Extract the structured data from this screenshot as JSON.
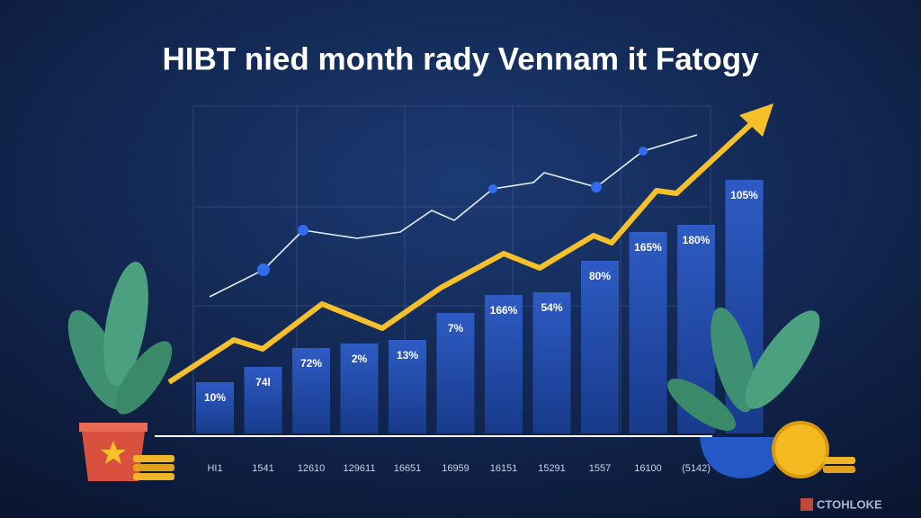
{
  "title": "HIBT nied month rady Vennam it Fatogy",
  "bar_labels": [
    "10%",
    "74l",
    "72%",
    "2%",
    "13%",
    "7%",
    "166%",
    "54%",
    "80%",
    "165%",
    "180%",
    "105%"
  ],
  "x_labels": [
    "HI1",
    "1541",
    "12610",
    "129611",
    "16651",
    "16959",
    "16151",
    "15291",
    "1557",
    "16100",
    "(5142)"
  ],
  "watermark": "CTOHLOKE"
}
